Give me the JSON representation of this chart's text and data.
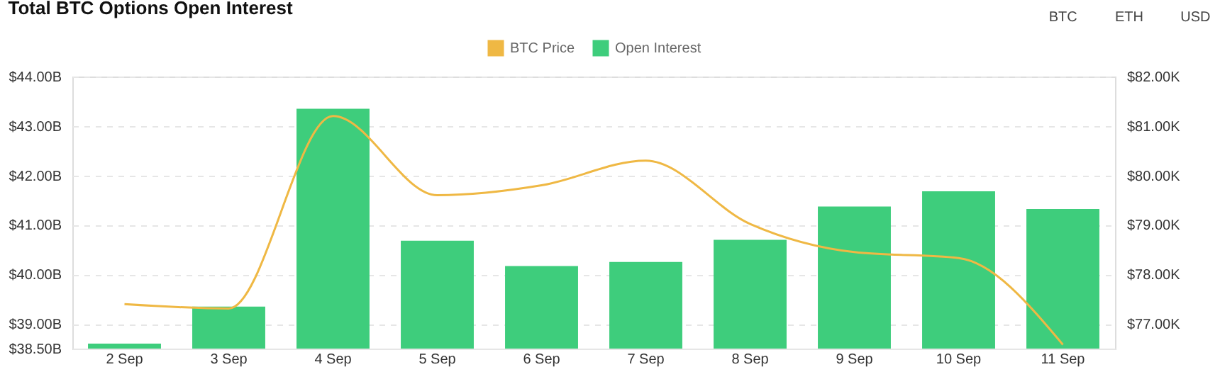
{
  "chart_data": {
    "type": "bar",
    "title": "Total BTC Options Open Interest",
    "categories": [
      "2 Sep",
      "3 Sep",
      "4 Sep",
      "5 Sep",
      "6 Sep",
      "7 Sep",
      "8 Sep",
      "9 Sep",
      "10 Sep",
      "11 Sep"
    ],
    "series": [
      {
        "name": "Open Interest",
        "color": "#3ecd7c",
        "values": [
          38.6,
          39.35,
          43.35,
          40.68,
          40.17,
          40.25,
          40.7,
          41.37,
          41.68,
          41.32
        ]
      },
      {
        "name": "BTC Price",
        "type": "line",
        "axis": "y2",
        "color": "#efb844",
        "values": [
          77.4,
          77.31,
          81.2,
          79.6,
          79.8,
          80.3,
          79.02,
          78.45,
          78.33,
          76.58
        ]
      }
    ],
    "ylim": [
      38.5,
      44
    ],
    "yticks": [
      {
        "value": 38.5,
        "label": "$38.50B"
      },
      {
        "value": 39,
        "label": "$39.00B"
      },
      {
        "value": 40,
        "label": "$40.00B"
      },
      {
        "value": 41,
        "label": "$41.00B"
      },
      {
        "value": 42,
        "label": "$42.00B"
      },
      {
        "value": 43,
        "label": "$43.00B"
      },
      {
        "value": 44,
        "label": "$44.00B"
      }
    ],
    "y2lim": [
      76.5,
      82
    ],
    "y2ticks": [
      {
        "value": 77,
        "label": "$77.00K"
      },
      {
        "value": 78,
        "label": "$78.00K"
      },
      {
        "value": 79,
        "label": "$79.00K"
      },
      {
        "value": 80,
        "label": "$80.00K"
      },
      {
        "value": 81,
        "label": "$81.00K"
      },
      {
        "value": 82,
        "label": "$82.00K"
      }
    ],
    "grid": "y",
    "legend": "top",
    "marker": "none",
    "line_style": "solid",
    "annotations": [
      "BTC",
      "ETH",
      "USD"
    ]
  }
}
